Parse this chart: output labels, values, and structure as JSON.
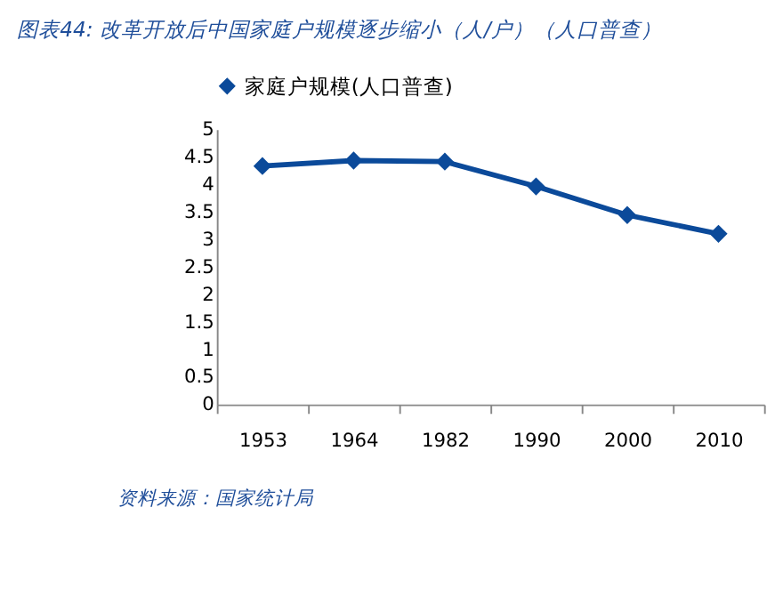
{
  "chart_data": {
    "type": "line",
    "title": "图表44: 改革开放后中国家庭户规模逐步缩小（人/户）（人口普查）",
    "categories": [
      "1953",
      "1964",
      "1982",
      "1990",
      "2000",
      "2010"
    ],
    "series": [
      {
        "name": "家庭户规模(人口普查)",
        "color": "#0b4a9a",
        "values": [
          4.33,
          4.43,
          4.41,
          3.96,
          3.44,
          3.1
        ]
      }
    ],
    "ylim": [
      0,
      5
    ],
    "yticks": [
      0,
      0.5,
      1,
      1.5,
      2,
      2.5,
      3,
      3.5,
      4,
      4.5,
      5
    ],
    "grid": false,
    "legend": "top",
    "marker": "diamond",
    "line_style": "solid",
    "annotations": [
      "资料来源：国家统计局"
    ]
  }
}
